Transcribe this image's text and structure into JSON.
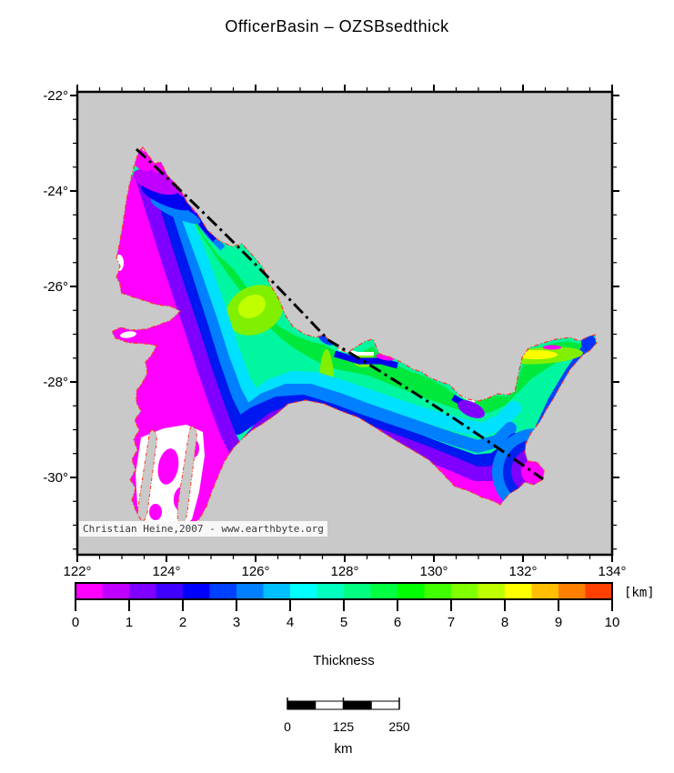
{
  "title": "OfficerBasin – OZSBsedthick",
  "map": {
    "background_color": "#c9c9c9",
    "frame_color": "#000000",
    "basin_outline_color": "#ff3c28",
    "section_line_color": "#000000",
    "no_data_color": "#ffffff",
    "x_axis": {
      "major_ticks": [
        {
          "lon": 122,
          "label": "122°"
        },
        {
          "lon": 124,
          "label": "124°"
        },
        {
          "lon": 126,
          "label": "126°"
        },
        {
          "lon": 128,
          "label": "128°"
        },
        {
          "lon": 130,
          "label": "130°"
        },
        {
          "lon": 132,
          "label": "132°"
        },
        {
          "lon": 134,
          "label": "134°"
        }
      ],
      "minor_step_deg": 0.5
    },
    "y_axis": {
      "major_ticks": [
        {
          "lat": -22,
          "label": "-22°"
        },
        {
          "lat": -24,
          "label": "-24°"
        },
        {
          "lat": -26,
          "label": "-26°"
        },
        {
          "lat": -28,
          "label": "-28°"
        },
        {
          "lat": -30,
          "label": "-30°"
        }
      ],
      "minor_step_deg": 0.5
    },
    "attribution": "Christian Heine,2007 - www.earthbyte.org"
  },
  "colorbar": {
    "title": "Thickness",
    "unit_label": "[km]",
    "tick_labels": [
      "0",
      "1",
      "2",
      "3",
      "4",
      "5",
      "6",
      "7",
      "8",
      "9",
      "10"
    ],
    "segment_colors": [
      "#ff00ff",
      "#bf00ff",
      "#7f00ff",
      "#4000ff",
      "#0000ff",
      "#0040ff",
      "#0080ff",
      "#00bfff",
      "#00ffff",
      "#00ffbf",
      "#00ff80",
      "#00ff40",
      "#00ff00",
      "#40ff00",
      "#80ff00",
      "#bfff00",
      "#ffff00",
      "#ffbf00",
      "#ff8000",
      "#ff4000"
    ]
  },
  "scalebar": {
    "tick_labels": [
      "0",
      "125",
      "250"
    ],
    "unit_label": "km"
  }
}
